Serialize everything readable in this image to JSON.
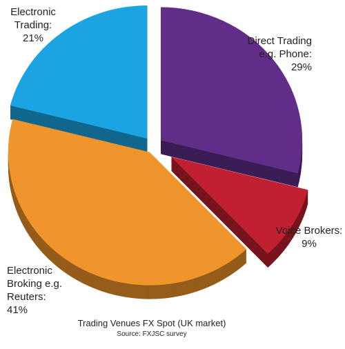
{
  "chart_data": {
    "type": "pie",
    "title": "Trading Venues FX Spot (UK market)",
    "subtitle": "Source: FXJSC survey",
    "categories": [
      "Direct Trading e.g. Phone:",
      "Voice Brokers:",
      "Electronic Broking e.g. Reuters:",
      "Electronic Trading:"
    ],
    "values": [
      29,
      9,
      41,
      21
    ],
    "value_labels": [
      "29%",
      "9%",
      "41%",
      "21%"
    ],
    "colors": [
      "#612d89",
      "#c0202f",
      "#f0952b",
      "#1ba4e1"
    ]
  }
}
